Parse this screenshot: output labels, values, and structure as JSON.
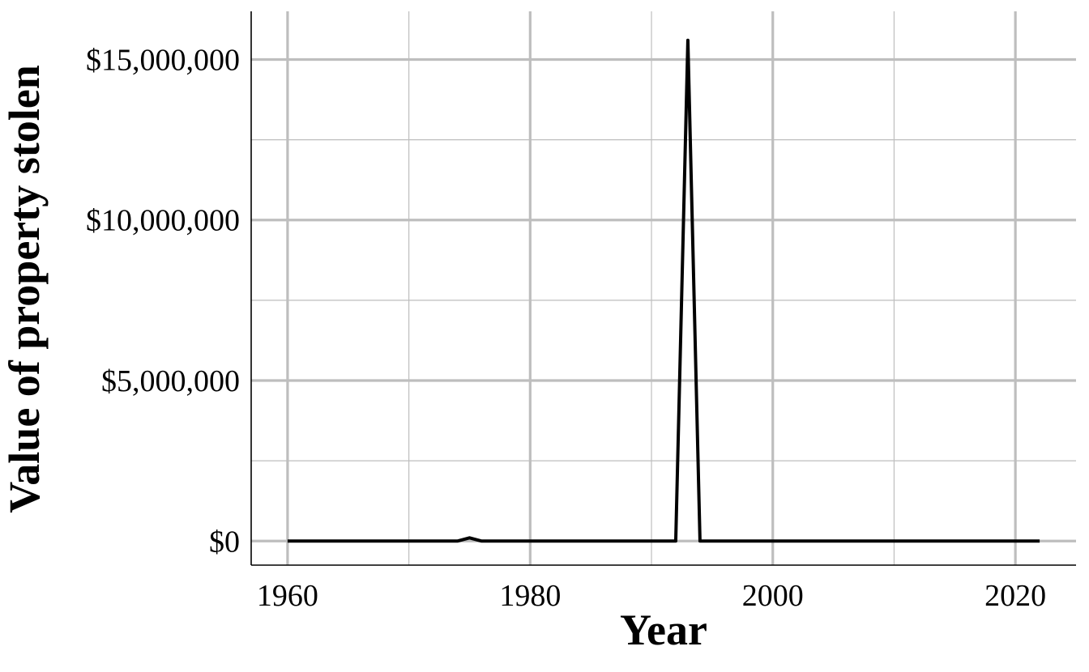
{
  "chart_data": {
    "type": "line",
    "title": "",
    "xlabel": "Year",
    "ylabel": "Value of property stolen",
    "xlim": [
      1957,
      2025
    ],
    "ylim": [
      -750000,
      16500000
    ],
    "x_major_ticks": [
      1960,
      1980,
      2000,
      2020
    ],
    "x_minor_ticks": [
      1970,
      1990,
      2010
    ],
    "y_major_ticks": [
      0,
      5000000,
      10000000,
      15000000
    ],
    "y_minor_ticks": [
      2500000,
      7500000,
      12500000
    ],
    "tick_labels": {
      "x": [
        "1960",
        "1980",
        "2000",
        "2020"
      ],
      "y": [
        "$0",
        "$5,000,000",
        "$10,000,000",
        "$15,000,000"
      ]
    },
    "grid": true,
    "legend": "none",
    "colors": {
      "line": "#000000",
      "grid": "#bebebe",
      "axis": "#000000"
    },
    "series": [
      {
        "x": [
          1960,
          1961,
          1962,
          1963,
          1964,
          1965,
          1966,
          1967,
          1968,
          1969,
          1970,
          1971,
          1972,
          1973,
          1974,
          1975,
          1976,
          1977,
          1978,
          1979,
          1980,
          1981,
          1982,
          1983,
          1984,
          1985,
          1986,
          1987,
          1988,
          1989,
          1990,
          1991,
          1992,
          1993,
          1994,
          1995,
          1996,
          1997,
          1998,
          1999,
          2000,
          2001,
          2002,
          2003,
          2004,
          2005,
          2006,
          2007,
          2008,
          2009,
          2010,
          2011,
          2012,
          2013,
          2014,
          2015,
          2016,
          2017,
          2018,
          2019,
          2020,
          2021,
          2022
        ],
        "values": [
          0,
          0,
          0,
          0,
          0,
          0,
          0,
          0,
          0,
          0,
          0,
          0,
          0,
          0,
          0,
          100000,
          0,
          0,
          0,
          0,
          0,
          0,
          0,
          0,
          0,
          0,
          0,
          0,
          0,
          0,
          0,
          0,
          0,
          15600000,
          0,
          0,
          0,
          0,
          0,
          0,
          0,
          0,
          0,
          0,
          0,
          0,
          0,
          0,
          0,
          0,
          0,
          0,
          0,
          0,
          0,
          0,
          0,
          0,
          0,
          0,
          0,
          0,
          0
        ]
      }
    ]
  }
}
